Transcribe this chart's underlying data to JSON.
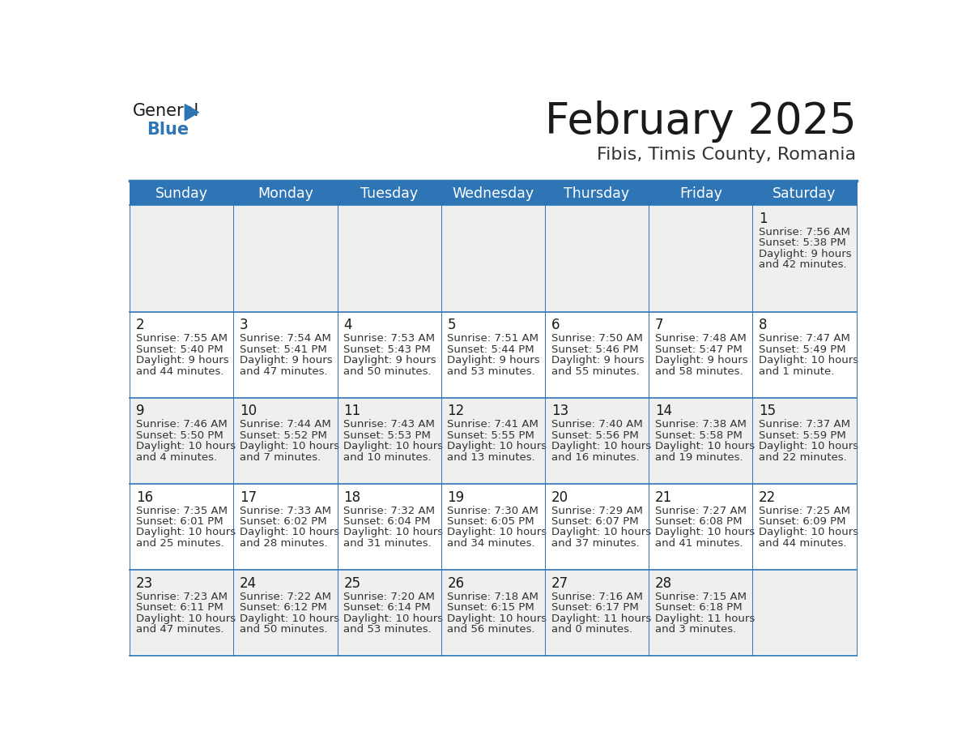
{
  "title": "February 2025",
  "subtitle": "Fibis, Timis County, Romania",
  "header_bg": "#2E75B6",
  "header_text": "#FFFFFF",
  "cell_bg_odd": "#EFEFEF",
  "cell_bg_even": "#FFFFFF",
  "day_number_color": "#1a1a1a",
  "text_color": "#333333",
  "line_color": "#2E75B6",
  "logo_general_color": "#1a1a1a",
  "logo_blue_color": "#2E75B6",
  "logo_triangle_color": "#2E75B6",
  "days_of_week": [
    "Sunday",
    "Monday",
    "Tuesday",
    "Wednesday",
    "Thursday",
    "Friday",
    "Saturday"
  ],
  "weeks": [
    [
      {
        "day": null,
        "info": ""
      },
      {
        "day": null,
        "info": ""
      },
      {
        "day": null,
        "info": ""
      },
      {
        "day": null,
        "info": ""
      },
      {
        "day": null,
        "info": ""
      },
      {
        "day": null,
        "info": ""
      },
      {
        "day": 1,
        "info": "Sunrise: 7:56 AM\nSunset: 5:38 PM\nDaylight: 9 hours\nand 42 minutes."
      }
    ],
    [
      {
        "day": 2,
        "info": "Sunrise: 7:55 AM\nSunset: 5:40 PM\nDaylight: 9 hours\nand 44 minutes."
      },
      {
        "day": 3,
        "info": "Sunrise: 7:54 AM\nSunset: 5:41 PM\nDaylight: 9 hours\nand 47 minutes."
      },
      {
        "day": 4,
        "info": "Sunrise: 7:53 AM\nSunset: 5:43 PM\nDaylight: 9 hours\nand 50 minutes."
      },
      {
        "day": 5,
        "info": "Sunrise: 7:51 AM\nSunset: 5:44 PM\nDaylight: 9 hours\nand 53 minutes."
      },
      {
        "day": 6,
        "info": "Sunrise: 7:50 AM\nSunset: 5:46 PM\nDaylight: 9 hours\nand 55 minutes."
      },
      {
        "day": 7,
        "info": "Sunrise: 7:48 AM\nSunset: 5:47 PM\nDaylight: 9 hours\nand 58 minutes."
      },
      {
        "day": 8,
        "info": "Sunrise: 7:47 AM\nSunset: 5:49 PM\nDaylight: 10 hours\nand 1 minute."
      }
    ],
    [
      {
        "day": 9,
        "info": "Sunrise: 7:46 AM\nSunset: 5:50 PM\nDaylight: 10 hours\nand 4 minutes."
      },
      {
        "day": 10,
        "info": "Sunrise: 7:44 AM\nSunset: 5:52 PM\nDaylight: 10 hours\nand 7 minutes."
      },
      {
        "day": 11,
        "info": "Sunrise: 7:43 AM\nSunset: 5:53 PM\nDaylight: 10 hours\nand 10 minutes."
      },
      {
        "day": 12,
        "info": "Sunrise: 7:41 AM\nSunset: 5:55 PM\nDaylight: 10 hours\nand 13 minutes."
      },
      {
        "day": 13,
        "info": "Sunrise: 7:40 AM\nSunset: 5:56 PM\nDaylight: 10 hours\nand 16 minutes."
      },
      {
        "day": 14,
        "info": "Sunrise: 7:38 AM\nSunset: 5:58 PM\nDaylight: 10 hours\nand 19 minutes."
      },
      {
        "day": 15,
        "info": "Sunrise: 7:37 AM\nSunset: 5:59 PM\nDaylight: 10 hours\nand 22 minutes."
      }
    ],
    [
      {
        "day": 16,
        "info": "Sunrise: 7:35 AM\nSunset: 6:01 PM\nDaylight: 10 hours\nand 25 minutes."
      },
      {
        "day": 17,
        "info": "Sunrise: 7:33 AM\nSunset: 6:02 PM\nDaylight: 10 hours\nand 28 minutes."
      },
      {
        "day": 18,
        "info": "Sunrise: 7:32 AM\nSunset: 6:04 PM\nDaylight: 10 hours\nand 31 minutes."
      },
      {
        "day": 19,
        "info": "Sunrise: 7:30 AM\nSunset: 6:05 PM\nDaylight: 10 hours\nand 34 minutes."
      },
      {
        "day": 20,
        "info": "Sunrise: 7:29 AM\nSunset: 6:07 PM\nDaylight: 10 hours\nand 37 minutes."
      },
      {
        "day": 21,
        "info": "Sunrise: 7:27 AM\nSunset: 6:08 PM\nDaylight: 10 hours\nand 41 minutes."
      },
      {
        "day": 22,
        "info": "Sunrise: 7:25 AM\nSunset: 6:09 PM\nDaylight: 10 hours\nand 44 minutes."
      }
    ],
    [
      {
        "day": 23,
        "info": "Sunrise: 7:23 AM\nSunset: 6:11 PM\nDaylight: 10 hours\nand 47 minutes."
      },
      {
        "day": 24,
        "info": "Sunrise: 7:22 AM\nSunset: 6:12 PM\nDaylight: 10 hours\nand 50 minutes."
      },
      {
        "day": 25,
        "info": "Sunrise: 7:20 AM\nSunset: 6:14 PM\nDaylight: 10 hours\nand 53 minutes."
      },
      {
        "day": 26,
        "info": "Sunrise: 7:18 AM\nSunset: 6:15 PM\nDaylight: 10 hours\nand 56 minutes."
      },
      {
        "day": 27,
        "info": "Sunrise: 7:16 AM\nSunset: 6:17 PM\nDaylight: 11 hours\nand 0 minutes."
      },
      {
        "day": 28,
        "info": "Sunrise: 7:15 AM\nSunset: 6:18 PM\nDaylight: 11 hours\nand 3 minutes."
      },
      {
        "day": null,
        "info": ""
      }
    ]
  ],
  "fig_width": 11.88,
  "fig_height": 9.18,
  "dpi": 100
}
